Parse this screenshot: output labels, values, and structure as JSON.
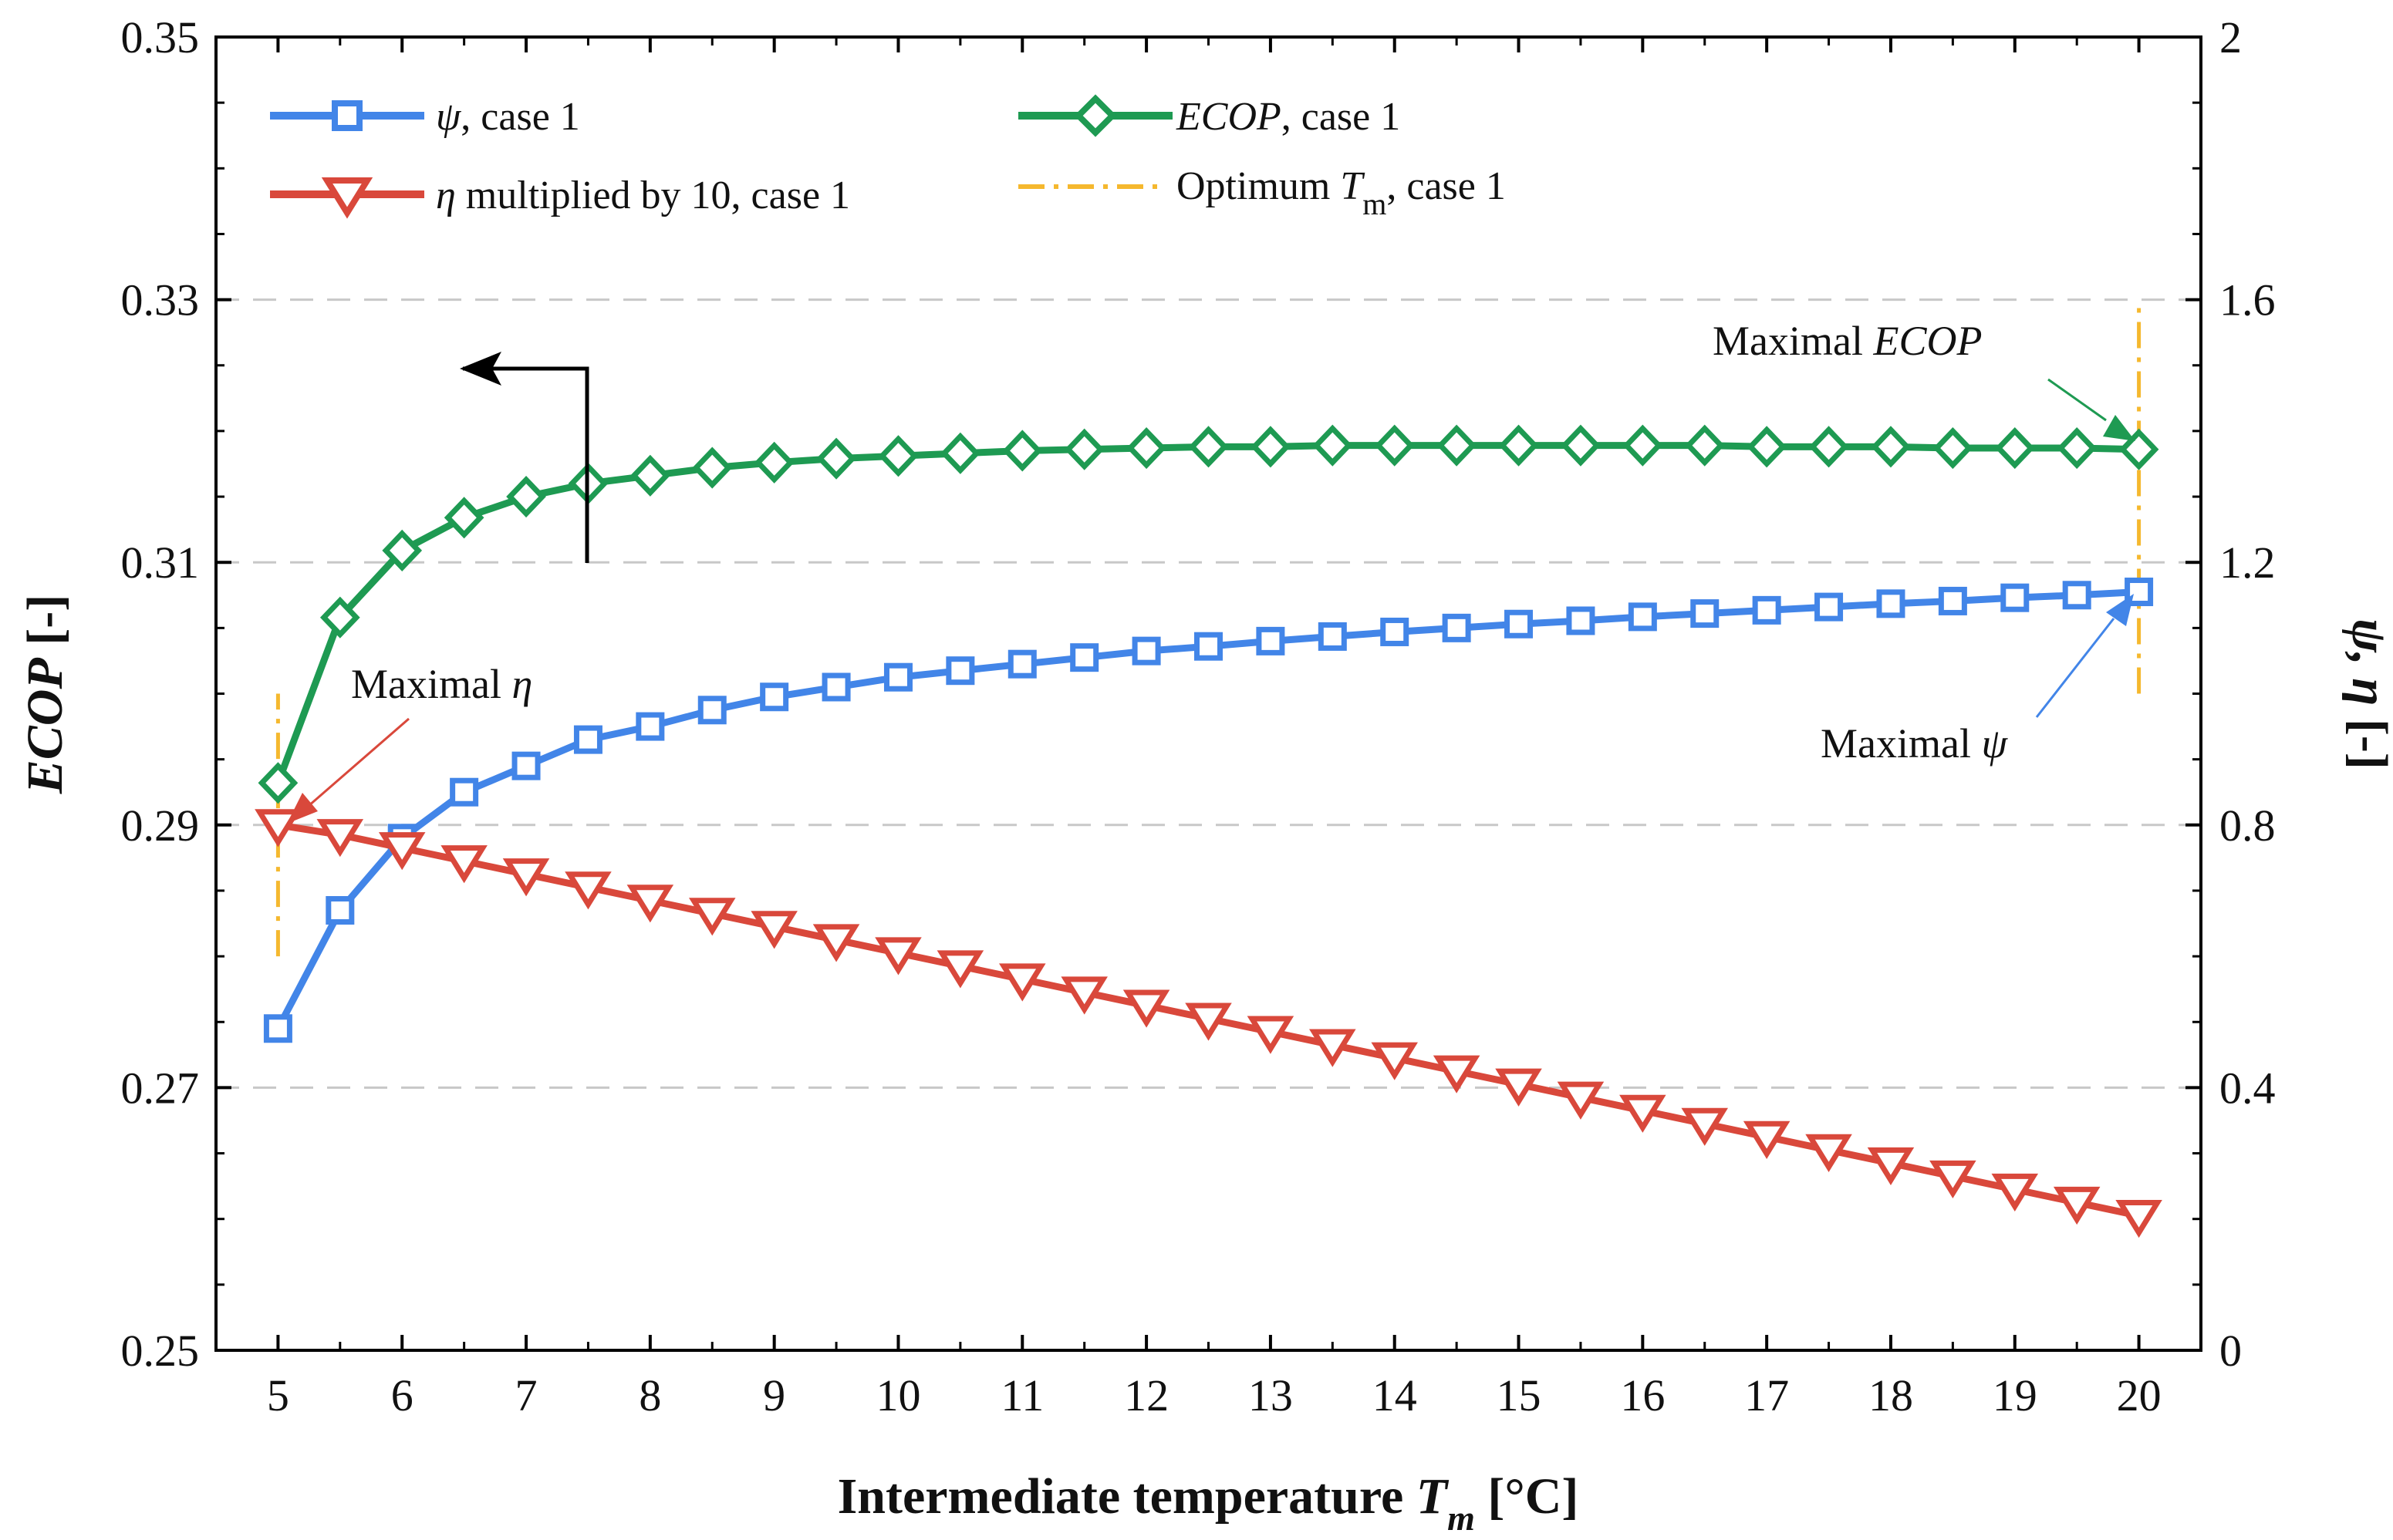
{
  "chart_data": {
    "type": "line",
    "x": [
      5,
      5.5,
      6,
      6.5,
      7,
      7.5,
      8,
      8.5,
      9,
      9.5,
      10,
      10.5,
      11,
      11.5,
      12,
      12.5,
      13,
      13.5,
      14,
      14.5,
      15,
      15.5,
      16,
      16.5,
      17,
      17.5,
      18,
      18.5,
      19,
      19.5,
      20
    ],
    "xlabel": {
      "text": "Intermediate temperature ",
      "var": "T",
      "sub": "m",
      "unit": " [°C]"
    },
    "xlim": [
      4.5,
      20.5
    ],
    "xticks": [
      "5",
      "6",
      "7",
      "8",
      "9",
      "10",
      "11",
      "12",
      "13",
      "14",
      "15",
      "16",
      "17",
      "18",
      "19",
      "20"
    ],
    "y_left": {
      "label": {
        "var": "ECOP",
        "unit": " [-]"
      },
      "lim": [
        0.25,
        0.35
      ],
      "ticks": [
        "0.25",
        "0.27",
        "0.29",
        "0.31",
        "0.33",
        "0.35"
      ]
    },
    "y_right": {
      "label": {
        "var": "ψ, η",
        "unit": " [-]"
      },
      "lim": [
        0,
        2
      ],
      "ticks": [
        "0",
        "0.4",
        "0.8",
        "1.2",
        "1.6",
        "2"
      ]
    },
    "grid_values_right": [
      0.4,
      0.8,
      1.2,
      1.6
    ],
    "series": [
      {
        "id": "psi",
        "axis": "right",
        "marker": "square",
        "color": "#4285e8",
        "legend": {
          "var": "ψ",
          "text": ", case 1"
        },
        "values": [
          0.49,
          0.67,
          0.78,
          0.85,
          0.89,
          0.93,
          0.95,
          0.975,
          0.995,
          1.01,
          1.025,
          1.035,
          1.045,
          1.055,
          1.065,
          1.072,
          1.08,
          1.087,
          1.094,
          1.1,
          1.106,
          1.111,
          1.117,
          1.122,
          1.127,
          1.132,
          1.137,
          1.141,
          1.146,
          1.15,
          1.155
        ]
      },
      {
        "id": "eta",
        "axis": "right",
        "marker": "triangle-down",
        "color": "#d9483b",
        "legend": {
          "var": "η",
          "text": " multiplied by 10, case 1"
        },
        "values": [
          0.8,
          0.785,
          0.765,
          0.745,
          0.725,
          0.705,
          0.685,
          0.665,
          0.645,
          0.625,
          0.605,
          0.585,
          0.565,
          0.545,
          0.525,
          0.505,
          0.485,
          0.465,
          0.445,
          0.425,
          0.405,
          0.385,
          0.365,
          0.345,
          0.325,
          0.305,
          0.285,
          0.265,
          0.245,
          0.225,
          0.205
        ]
      },
      {
        "id": "ecop",
        "axis": "left",
        "marker": "diamond",
        "color": "#1e9a52",
        "legend": {
          "var": "ECOP",
          "text": ", case 1"
        },
        "values": [
          0.2932,
          0.3058,
          0.3109,
          0.3134,
          0.315,
          0.316,
          0.3166,
          0.3172,
          0.3176,
          0.3179,
          0.3181,
          0.3183,
          0.3185,
          0.3186,
          0.3187,
          0.3188,
          0.3188,
          0.3189,
          0.3189,
          0.3189,
          0.3189,
          0.3189,
          0.3189,
          0.3189,
          0.3188,
          0.3188,
          0.3188,
          0.3187,
          0.3187,
          0.3187,
          0.3186
        ]
      }
    ],
    "optimum_lines": [
      {
        "x": 5,
        "y_from": 0.28,
        "y_to": 0.3,
        "axis": "left"
      },
      {
        "x": 20,
        "y_from": 0.3,
        "y_to": 0.33,
        "axis": "left"
      }
    ],
    "optimum_legend": {
      "text": "Optimum ",
      "var": "T",
      "sub": "m",
      "tail": ", case 1",
      "color": "#f5b82e"
    },
    "annotations": {
      "max_eta": {
        "text": "Maximal ",
        "var": "η"
      },
      "max_psi": {
        "text": "Maximal ",
        "var": "ψ"
      },
      "max_ecop": {
        "text": "Maximal ",
        "var": "ECOP"
      }
    },
    "axis_arrow": {
      "points_to": "left",
      "x": 7.5,
      "color": "#000000"
    }
  }
}
